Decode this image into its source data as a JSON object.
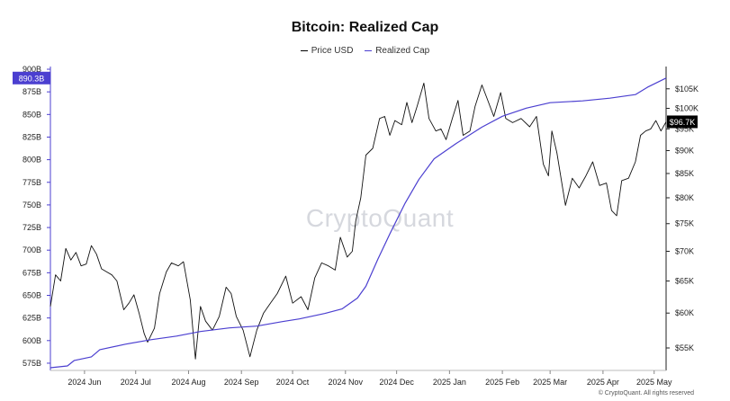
{
  "chart_data": {
    "type": "line",
    "title": "Bitcoin: Realized Cap",
    "legend": [
      "Price USD",
      "Realized Cap"
    ],
    "legend_position": "top-center",
    "watermark": "CryptoQuant",
    "credit": "© CryptoQuant. All rights reserved",
    "colors": {
      "price": "#111111",
      "realized_cap": "#4b3fd0",
      "left_badge": "#4b3fd0",
      "right_badge": "#000000"
    },
    "x_ticks": [
      "2024 Jun",
      "2024 Jul",
      "2024 Aug",
      "2024 Sep",
      "2024 Oct",
      "2024 Nov",
      "2024 Dec",
      "2025 Jan",
      "2025 Feb",
      "2025 Mar",
      "2025 Apr",
      "2025 May"
    ],
    "x_tick_dates": [
      "2024-06-01",
      "2024-07-01",
      "2024-08-01",
      "2024-09-01",
      "2024-10-01",
      "2024-11-01",
      "2024-12-01",
      "2025-01-01",
      "2025-02-01",
      "2025-03-01",
      "2025-04-01",
      "2025-05-01"
    ],
    "xlim": [
      "2024-05-12",
      "2025-05-08"
    ],
    "left_axis": {
      "label": "",
      "ticks": [
        "575B",
        "600B",
        "625B",
        "650B",
        "675B",
        "700B",
        "725B",
        "750B",
        "775B",
        "800B",
        "825B",
        "850B",
        "875B",
        "900B"
      ],
      "tick_values": [
        575,
        600,
        625,
        650,
        675,
        700,
        725,
        750,
        775,
        800,
        825,
        850,
        875,
        900
      ],
      "ylim": [
        567,
        903
      ],
      "current_label": "890.3B",
      "current_value": 890.3
    },
    "right_axis": {
      "label": "",
      "scale": "log",
      "ticks": [
        "$55K",
        "$60K",
        "$65K",
        "$70K",
        "$75K",
        "$80K",
        "$85K",
        "$90K",
        "$95K",
        "$100K",
        "$105K"
      ],
      "tick_values": [
        55000,
        60000,
        65000,
        70000,
        75000,
        80000,
        85000,
        90000,
        95000,
        100000,
        105000
      ],
      "ylim": [
        52000,
        111000
      ],
      "current_label": "$96.7K",
      "current_value": 96700
    },
    "series": [
      {
        "name": "Price USD",
        "axis": "right",
        "points": [
          [
            "2024-05-12",
            61000
          ],
          [
            "2024-05-15",
            66000
          ],
          [
            "2024-05-18",
            65000
          ],
          [
            "2024-05-21",
            70500
          ],
          [
            "2024-05-24",
            68500
          ],
          [
            "2024-05-27",
            69800
          ],
          [
            "2024-05-30",
            67500
          ],
          [
            "2024-06-02",
            67800
          ],
          [
            "2024-06-05",
            71000
          ],
          [
            "2024-06-08",
            69500
          ],
          [
            "2024-06-11",
            67000
          ],
          [
            "2024-06-14",
            66500
          ],
          [
            "2024-06-17",
            66000
          ],
          [
            "2024-06-20",
            65000
          ],
          [
            "2024-06-24",
            60500
          ],
          [
            "2024-06-27",
            61500
          ],
          [
            "2024-06-30",
            62800
          ],
          [
            "2024-07-03",
            60000
          ],
          [
            "2024-07-06",
            57000
          ],
          [
            "2024-07-08",
            55800
          ],
          [
            "2024-07-12",
            57800
          ],
          [
            "2024-07-15",
            63000
          ],
          [
            "2024-07-19",
            66500
          ],
          [
            "2024-07-22",
            68000
          ],
          [
            "2024-07-26",
            67500
          ],
          [
            "2024-07-29",
            68200
          ],
          [
            "2024-08-02",
            62000
          ],
          [
            "2024-08-05",
            53500
          ],
          [
            "2024-08-08",
            61000
          ],
          [
            "2024-08-11",
            58800
          ],
          [
            "2024-08-15",
            57500
          ],
          [
            "2024-08-19",
            59500
          ],
          [
            "2024-08-23",
            64000
          ],
          [
            "2024-08-26",
            63000
          ],
          [
            "2024-08-29",
            59500
          ],
          [
            "2024-09-02",
            57500
          ],
          [
            "2024-09-06",
            53800
          ],
          [
            "2024-09-10",
            57500
          ],
          [
            "2024-09-14",
            60000
          ],
          [
            "2024-09-18",
            61500
          ],
          [
            "2024-09-22",
            63000
          ],
          [
            "2024-09-27",
            65800
          ],
          [
            "2024-10-01",
            61500
          ],
          [
            "2024-10-06",
            62500
          ],
          [
            "2024-10-10",
            60500
          ],
          [
            "2024-10-14",
            65500
          ],
          [
            "2024-10-18",
            68000
          ],
          [
            "2024-10-22",
            67500
          ],
          [
            "2024-10-26",
            66800
          ],
          [
            "2024-10-29",
            72500
          ],
          [
            "2024-11-02",
            69000
          ],
          [
            "2024-11-05",
            70000
          ],
          [
            "2024-11-07",
            75500
          ],
          [
            "2024-11-10",
            80000
          ],
          [
            "2024-11-13",
            89000
          ],
          [
            "2024-11-17",
            90500
          ],
          [
            "2024-11-21",
            97500
          ],
          [
            "2024-11-24",
            98000
          ],
          [
            "2024-11-27",
            93500
          ],
          [
            "2024-11-30",
            97000
          ],
          [
            "2024-12-04",
            96000
          ],
          [
            "2024-12-07",
            101500
          ],
          [
            "2024-12-10",
            96500
          ],
          [
            "2024-12-13",
            100500
          ],
          [
            "2024-12-17",
            106500
          ],
          [
            "2024-12-20",
            97500
          ],
          [
            "2024-12-24",
            94500
          ],
          [
            "2024-12-27",
            95000
          ],
          [
            "2024-12-30",
            92500
          ],
          [
            "2025-01-03",
            98000
          ],
          [
            "2025-01-06",
            102000
          ],
          [
            "2025-01-09",
            93500
          ],
          [
            "2025-01-13",
            94500
          ],
          [
            "2025-01-16",
            100500
          ],
          [
            "2025-01-20",
            106000
          ],
          [
            "2025-01-23",
            102500
          ],
          [
            "2025-01-27",
            98000
          ],
          [
            "2025-01-31",
            104000
          ],
          [
            "2025-02-03",
            97500
          ],
          [
            "2025-02-07",
            96500
          ],
          [
            "2025-02-12",
            97500
          ],
          [
            "2025-02-17",
            95500
          ],
          [
            "2025-02-21",
            98000
          ],
          [
            "2025-02-25",
            87000
          ],
          [
            "2025-02-28",
            84500
          ],
          [
            "2025-03-02",
            94500
          ],
          [
            "2025-03-05",
            89500
          ],
          [
            "2025-03-10",
            78500
          ],
          [
            "2025-03-14",
            84000
          ],
          [
            "2025-03-18",
            82000
          ],
          [
            "2025-03-22",
            84500
          ],
          [
            "2025-03-26",
            87500
          ],
          [
            "2025-03-30",
            82500
          ],
          [
            "2025-04-03",
            83000
          ],
          [
            "2025-04-06",
            77500
          ],
          [
            "2025-04-09",
            76500
          ],
          [
            "2025-04-12",
            83500
          ],
          [
            "2025-04-16",
            84000
          ],
          [
            "2025-04-20",
            87500
          ],
          [
            "2025-04-23",
            93500
          ],
          [
            "2025-04-26",
            94500
          ],
          [
            "2025-04-29",
            95000
          ],
          [
            "2025-05-02",
            97000
          ],
          [
            "2025-05-05",
            94500
          ],
          [
            "2025-05-08",
            96700
          ]
        ]
      },
      {
        "name": "Realized Cap",
        "axis": "left",
        "points": [
          [
            "2024-05-12",
            570
          ],
          [
            "2024-05-22",
            572
          ],
          [
            "2024-05-26",
            578
          ],
          [
            "2024-06-05",
            582
          ],
          [
            "2024-06-10",
            590
          ],
          [
            "2024-06-25",
            596
          ],
          [
            "2024-07-10",
            601
          ],
          [
            "2024-07-25",
            605
          ],
          [
            "2024-08-08",
            610
          ],
          [
            "2024-08-25",
            614
          ],
          [
            "2024-09-10",
            616
          ],
          [
            "2024-09-25",
            621
          ],
          [
            "2024-10-05",
            624
          ],
          [
            "2024-10-20",
            630
          ],
          [
            "2024-10-30",
            635
          ],
          [
            "2024-11-08",
            647
          ],
          [
            "2024-11-13",
            660
          ],
          [
            "2024-11-20",
            690
          ],
          [
            "2024-11-27",
            718
          ],
          [
            "2024-12-06",
            752
          ],
          [
            "2024-12-14",
            778
          ],
          [
            "2024-12-23",
            801
          ],
          [
            "2025-01-05",
            818
          ],
          [
            "2025-01-20",
            836
          ],
          [
            "2025-02-01",
            848
          ],
          [
            "2025-02-15",
            857
          ],
          [
            "2025-03-01",
            863
          ],
          [
            "2025-03-20",
            865
          ],
          [
            "2025-04-05",
            868
          ],
          [
            "2025-04-20",
            872
          ],
          [
            "2025-04-27",
            880
          ],
          [
            "2025-05-08",
            890.3
          ]
        ]
      }
    ]
  }
}
